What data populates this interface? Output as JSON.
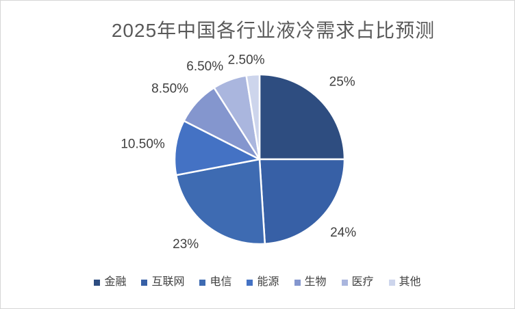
{
  "title": "2025年中国各行业液冷需求占比预测",
  "chart_data": {
    "type": "pie",
    "title": "2025年中国各行业液冷需求占比预测",
    "categories": [
      "金融",
      "互联网",
      "电信",
      "能源",
      "生物",
      "医疗",
      "其他"
    ],
    "values": [
      25,
      24,
      23,
      10.5,
      8.5,
      6.5,
      2.5
    ],
    "data_labels": [
      "25%",
      "24%",
      "23%",
      "10.50%",
      "8.50%",
      "6.50%",
      "2.50%"
    ],
    "colors": [
      "#2E4D80",
      "#3760A6",
      "#3E6BB2",
      "#4472C4",
      "#8496CE",
      "#AAB6DE",
      "#CDD5EC"
    ],
    "start_angle_deg": 0,
    "direction": "clockwise",
    "legend_position": "bottom",
    "slice_border_color": "#FFFFFF",
    "title_color": "#595959",
    "label_color": "#404040"
  }
}
